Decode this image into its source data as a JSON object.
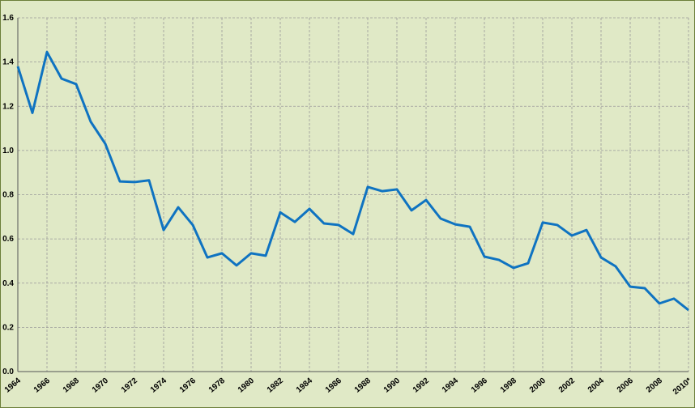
{
  "chart_data": {
    "type": "line",
    "categories": [
      "1964",
      null,
      "1966",
      null,
      "1968",
      null,
      "1970",
      null,
      "1972",
      null,
      "1974",
      null,
      "1976",
      null,
      "1978",
      null,
      "1980",
      null,
      "1982",
      null,
      "1984",
      null,
      "1986",
      null,
      "1988",
      null,
      "1990",
      null,
      "1992",
      null,
      "1994",
      null,
      "1996",
      null,
      "1998",
      null,
      "2000",
      null,
      "2002",
      null,
      "2004",
      null,
      "2006",
      null,
      "2008",
      null,
      "2010*"
    ],
    "series": [
      {
        "color": "#0f73c1",
        "values": [
          1.38,
          1.17,
          1.445,
          1.325,
          1.3,
          1.13,
          1.03,
          0.86,
          0.857,
          0.865,
          0.64,
          0.743,
          0.663,
          0.516,
          0.535,
          0.48,
          0.535,
          0.524,
          0.72,
          0.677,
          0.736,
          0.67,
          0.663,
          0.622,
          0.835,
          0.816,
          0.824,
          0.729,
          0.776,
          0.692,
          0.666,
          0.655,
          0.52,
          0.505,
          0.469,
          0.49,
          0.674,
          0.663,
          0.615,
          0.64,
          0.516,
          0.476,
          0.384,
          0.377,
          0.308,
          0.33,
          0.278
        ]
      }
    ],
    "ylim": [
      0,
      1.6
    ],
    "yticks": [
      {
        "value": 0,
        "label": "0.0"
      },
      0.2,
      0.4,
      0.6,
      0.8,
      {
        "value": 1,
        "label": "1.0"
      },
      1.2,
      1.4,
      1.6
    ],
    "grid": true
  }
}
